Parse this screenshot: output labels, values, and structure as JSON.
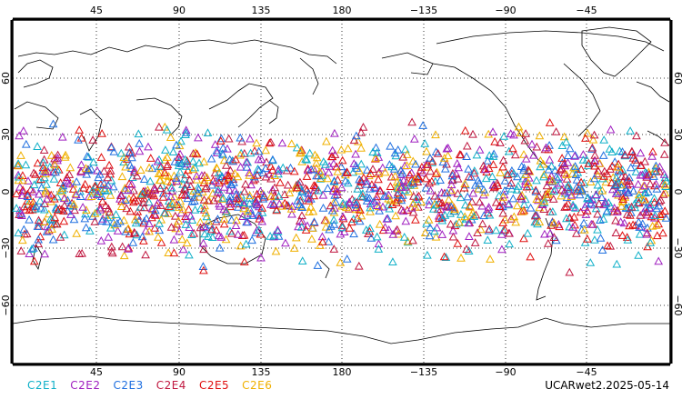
{
  "map": {
    "lon_ticks": [
      "45",
      "90",
      "135",
      "180",
      "−135",
      "−90",
      "−45"
    ],
    "lat_ticks": [
      "60",
      "30",
      "0",
      "−30",
      "−60"
    ]
  },
  "legend": [
    {
      "label": "C2E1",
      "color": "#10b0c8"
    },
    {
      "label": "C2E2",
      "color": "#a020c0"
    },
    {
      "label": "C2E3",
      "color": "#2070e0"
    },
    {
      "label": "C2E4",
      "color": "#c01840"
    },
    {
      "label": "C2E5",
      "color": "#e01010"
    },
    {
      "label": "C2E6",
      "color": "#f0b000"
    }
  ],
  "stamp": "UCARwet2.2025-05-14"
}
